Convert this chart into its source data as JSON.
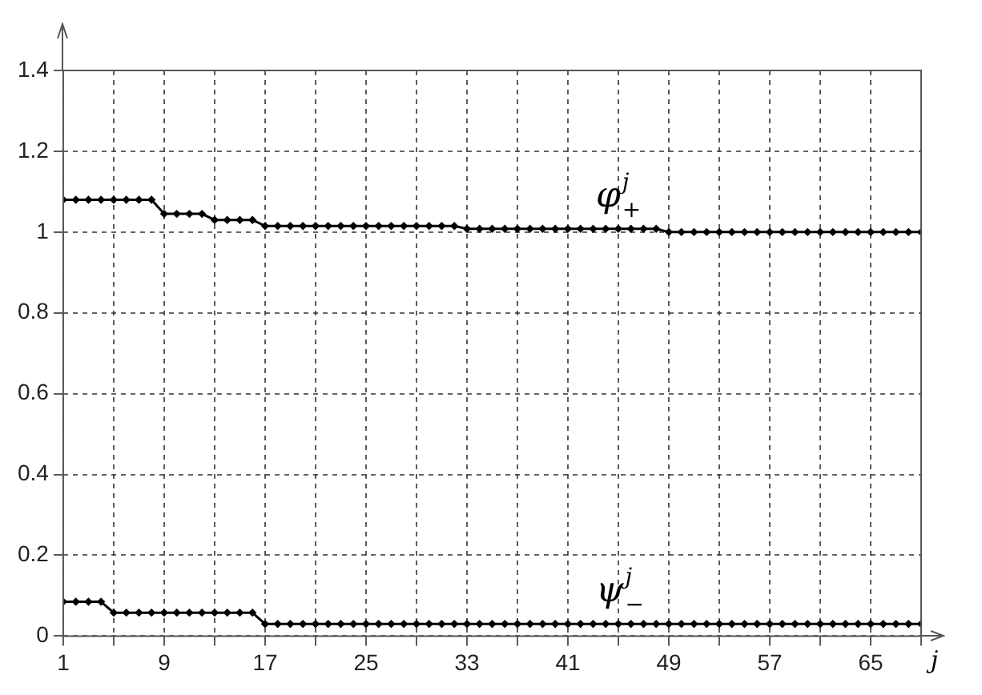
{
  "chart_data": {
    "type": "line",
    "xlabel": "j",
    "x": [
      1,
      2,
      3,
      4,
      5,
      6,
      7,
      8,
      9,
      10,
      11,
      12,
      13,
      14,
      15,
      16,
      17,
      18,
      19,
      20,
      21,
      22,
      23,
      24,
      25,
      26,
      27,
      28,
      29,
      30,
      31,
      32,
      33,
      34,
      35,
      36,
      37,
      38,
      39,
      40,
      41,
      42,
      43,
      44,
      45,
      46,
      47,
      48,
      49,
      50,
      51,
      52,
      53,
      54,
      55,
      56,
      57,
      58,
      59,
      60,
      61,
      62,
      63,
      64,
      65,
      66,
      67,
      68,
      69
    ],
    "series": [
      {
        "name": "φ$^{j}$$_{+}$",
        "color": "#000000",
        "values": [
          1.08,
          1.08,
          1.08,
          1.08,
          1.08,
          1.08,
          1.08,
          1.08,
          1.045,
          1.045,
          1.045,
          1.045,
          1.03,
          1.03,
          1.03,
          1.03,
          1.015,
          1.015,
          1.015,
          1.015,
          1.015,
          1.015,
          1.015,
          1.015,
          1.015,
          1.015,
          1.015,
          1.015,
          1.015,
          1.015,
          1.015,
          1.015,
          1.008,
          1.008,
          1.008,
          1.008,
          1.008,
          1.008,
          1.008,
          1.008,
          1.008,
          1.008,
          1.008,
          1.008,
          1.008,
          1.008,
          1.008,
          1.008,
          1,
          1,
          1,
          1,
          1,
          1,
          1,
          1,
          1,
          1,
          1,
          1,
          1,
          1,
          1,
          1,
          1,
          1,
          1,
          1,
          1
        ]
      },
      {
        "name": "ψ$^{j}$$_{−}$",
        "color": "#000000",
        "values": [
          0.085,
          0.085,
          0.085,
          0.085,
          0.058,
          0.058,
          0.058,
          0.058,
          0.058,
          0.058,
          0.058,
          0.058,
          0.058,
          0.058,
          0.058,
          0.058,
          0.03,
          0.03,
          0.03,
          0.03,
          0.03,
          0.03,
          0.03,
          0.03,
          0.03,
          0.03,
          0.03,
          0.03,
          0.03,
          0.03,
          0.03,
          0.03,
          0.03,
          0.03,
          0.03,
          0.03,
          0.03,
          0.03,
          0.03,
          0.03,
          0.03,
          0.03,
          0.03,
          0.03,
          0.03,
          0.03,
          0.03,
          0.03,
          0.03,
          0.03,
          0.03,
          0.03,
          0.03,
          0.03,
          0.03,
          0.03,
          0.03,
          0.03,
          0.03,
          0.03,
          0.03,
          0.03,
          0.03,
          0.03,
          0.03,
          0.03,
          0.03,
          0.03,
          0.03
        ]
      }
    ],
    "xlim": [
      1,
      69
    ],
    "xticks": [
      1,
      {
        "value": 5,
        "label": null
      },
      9,
      {
        "value": 13,
        "label": null
      },
      17,
      {
        "value": 21,
        "label": null
      },
      25,
      {
        "value": 29,
        "label": null
      },
      33,
      {
        "value": 37,
        "label": null
      },
      41,
      {
        "value": 45,
        "label": null
      },
      49,
      {
        "value": 53,
        "label": null
      },
      57,
      {
        "value": 61,
        "label": null
      },
      65,
      {
        "value": 69,
        "label": null
      }
    ],
    "ylim": [
      0,
      1.4
    ],
    "yticks": [
      0,
      0.2,
      0.4,
      0.6,
      0.8,
      1,
      1.2,
      1.4
    ],
    "grid": true,
    "legend": false,
    "marker": "diamond",
    "line_style": "solid"
  }
}
